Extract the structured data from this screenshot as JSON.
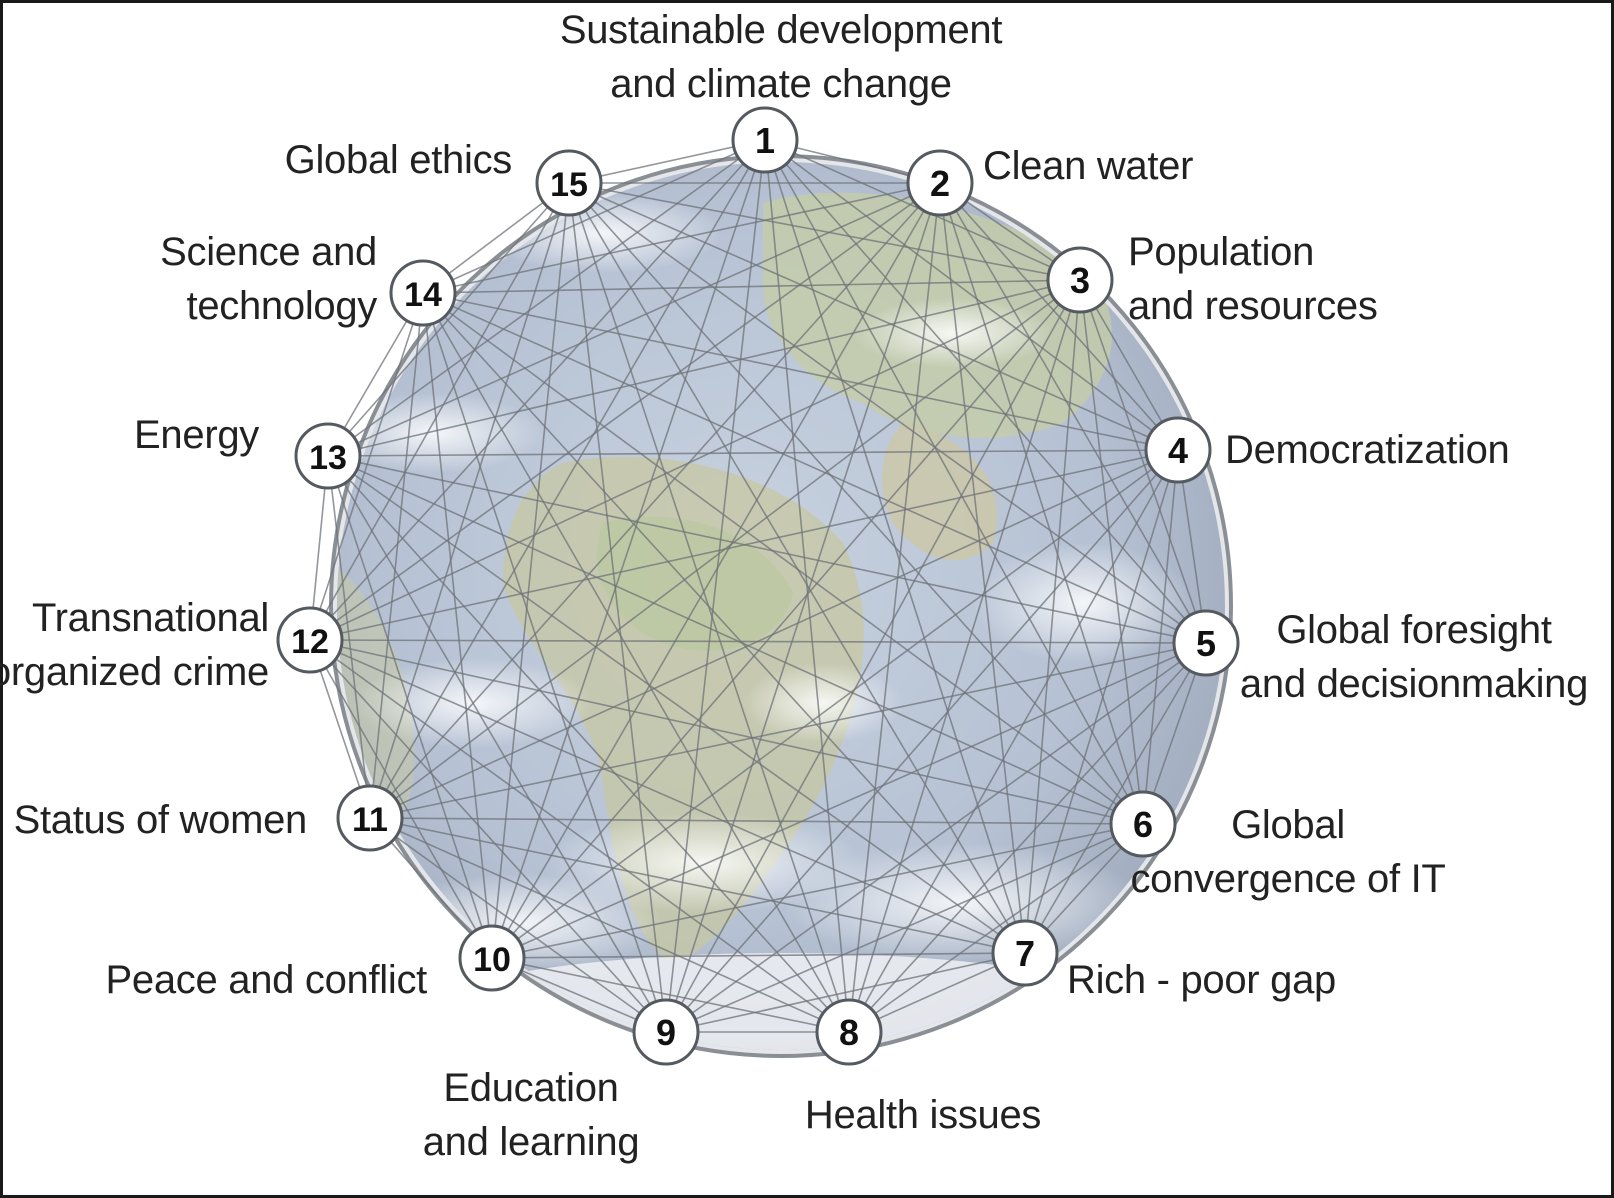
{
  "nodes": [
    {
      "id": 1,
      "number": "1",
      "label_lines": [
        "Sustainable development",
        "and climate change"
      ]
    },
    {
      "id": 2,
      "number": "2",
      "label_lines": [
        "Clean water"
      ]
    },
    {
      "id": 3,
      "number": "3",
      "label_lines": [
        "Population",
        "and resources"
      ]
    },
    {
      "id": 4,
      "number": "4",
      "label_lines": [
        "Democratization"
      ]
    },
    {
      "id": 5,
      "number": "5",
      "label_lines": [
        "Global foresight",
        "and decisionmaking"
      ]
    },
    {
      "id": 6,
      "number": "6",
      "label_lines": [
        "Global",
        "convergence of IT"
      ]
    },
    {
      "id": 7,
      "number": "7",
      "label_lines": [
        "Rich - poor gap"
      ]
    },
    {
      "id": 8,
      "number": "8",
      "label_lines": [
        "Health issues"
      ]
    },
    {
      "id": 9,
      "number": "9",
      "label_lines": [
        "Education",
        "and learning"
      ]
    },
    {
      "id": 10,
      "number": "10",
      "label_lines": [
        "Peace and conflict"
      ]
    },
    {
      "id": 11,
      "number": "11",
      "label_lines": [
        "Status of women"
      ]
    },
    {
      "id": 12,
      "number": "12",
      "label_lines": [
        "Transnational",
        "organized crime"
      ]
    },
    {
      "id": 13,
      "number": "13",
      "label_lines": [
        "Energy"
      ]
    },
    {
      "id": 14,
      "number": "14",
      "label_lines": [
        "Science and",
        "technology"
      ]
    },
    {
      "id": 15,
      "number": "15",
      "label_lines": [
        "Global ethics"
      ]
    }
  ],
  "connections": "all-pairs",
  "colors": {
    "globe_ocean": "#b9c6d8",
    "globe_land": "#c9cfa6",
    "globe_rim": "#8a8f96",
    "edge": "#6f7378",
    "node_fill": "#ffffff",
    "node_stroke": "#555a60",
    "text": "#222222"
  }
}
